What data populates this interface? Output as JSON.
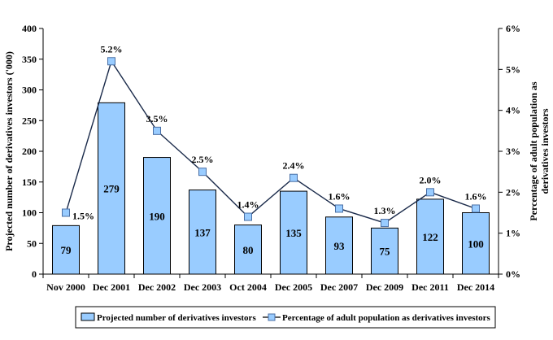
{
  "chart_data": {
    "type": "bar",
    "categories": [
      "Nov 2000",
      "Dec 2001",
      "Dec 2002",
      "Dec 2003",
      "Oct 2004",
      "Dec 2005",
      "Dec 2007",
      "Dec 2009",
      "Dec 2011",
      "Dec 2014"
    ],
    "series": [
      {
        "name": "Projected number of derivatives investors",
        "chart_type": "bar",
        "axis": "left",
        "values": [
          79,
          279,
          190,
          137,
          80,
          135,
          93,
          75,
          122,
          100
        ],
        "labels": [
          "79",
          "279",
          "190",
          "137",
          "80",
          "135",
          "93",
          "75",
          "122",
          "100"
        ],
        "color": "#99ccff"
      },
      {
        "name": "Percentage of adult population as derivatives investors",
        "chart_type": "line",
        "axis": "right",
        "values": [
          1.5,
          5.2,
          3.5,
          2.5,
          1.4,
          2.35,
          1.6,
          1.25,
          2.0,
          1.6
        ],
        "labels": [
          "1.5%",
          "5.2%",
          "3.5%",
          "2.5%",
          "1.4%",
          "2.4%",
          "1.6%",
          "1.3%",
          "2.0%",
          "1.6%"
        ],
        "color": "#99ccff"
      }
    ],
    "ylabel": "Projected number of derivatives investors ('000)",
    "y2label_line1": "Percentage of adult population as",
    "y2label_line2": "derivatives investors",
    "ylim": [
      0,
      400
    ],
    "yticks": [
      "0",
      "50",
      "100",
      "150",
      "200",
      "250",
      "300",
      "350",
      "400"
    ],
    "y2lim": [
      0,
      6
    ],
    "y2ticks": [
      "0%",
      "1%",
      "2%",
      "3%",
      "4%",
      "5%",
      "6%"
    ],
    "grid": false,
    "legend": "bottom"
  }
}
